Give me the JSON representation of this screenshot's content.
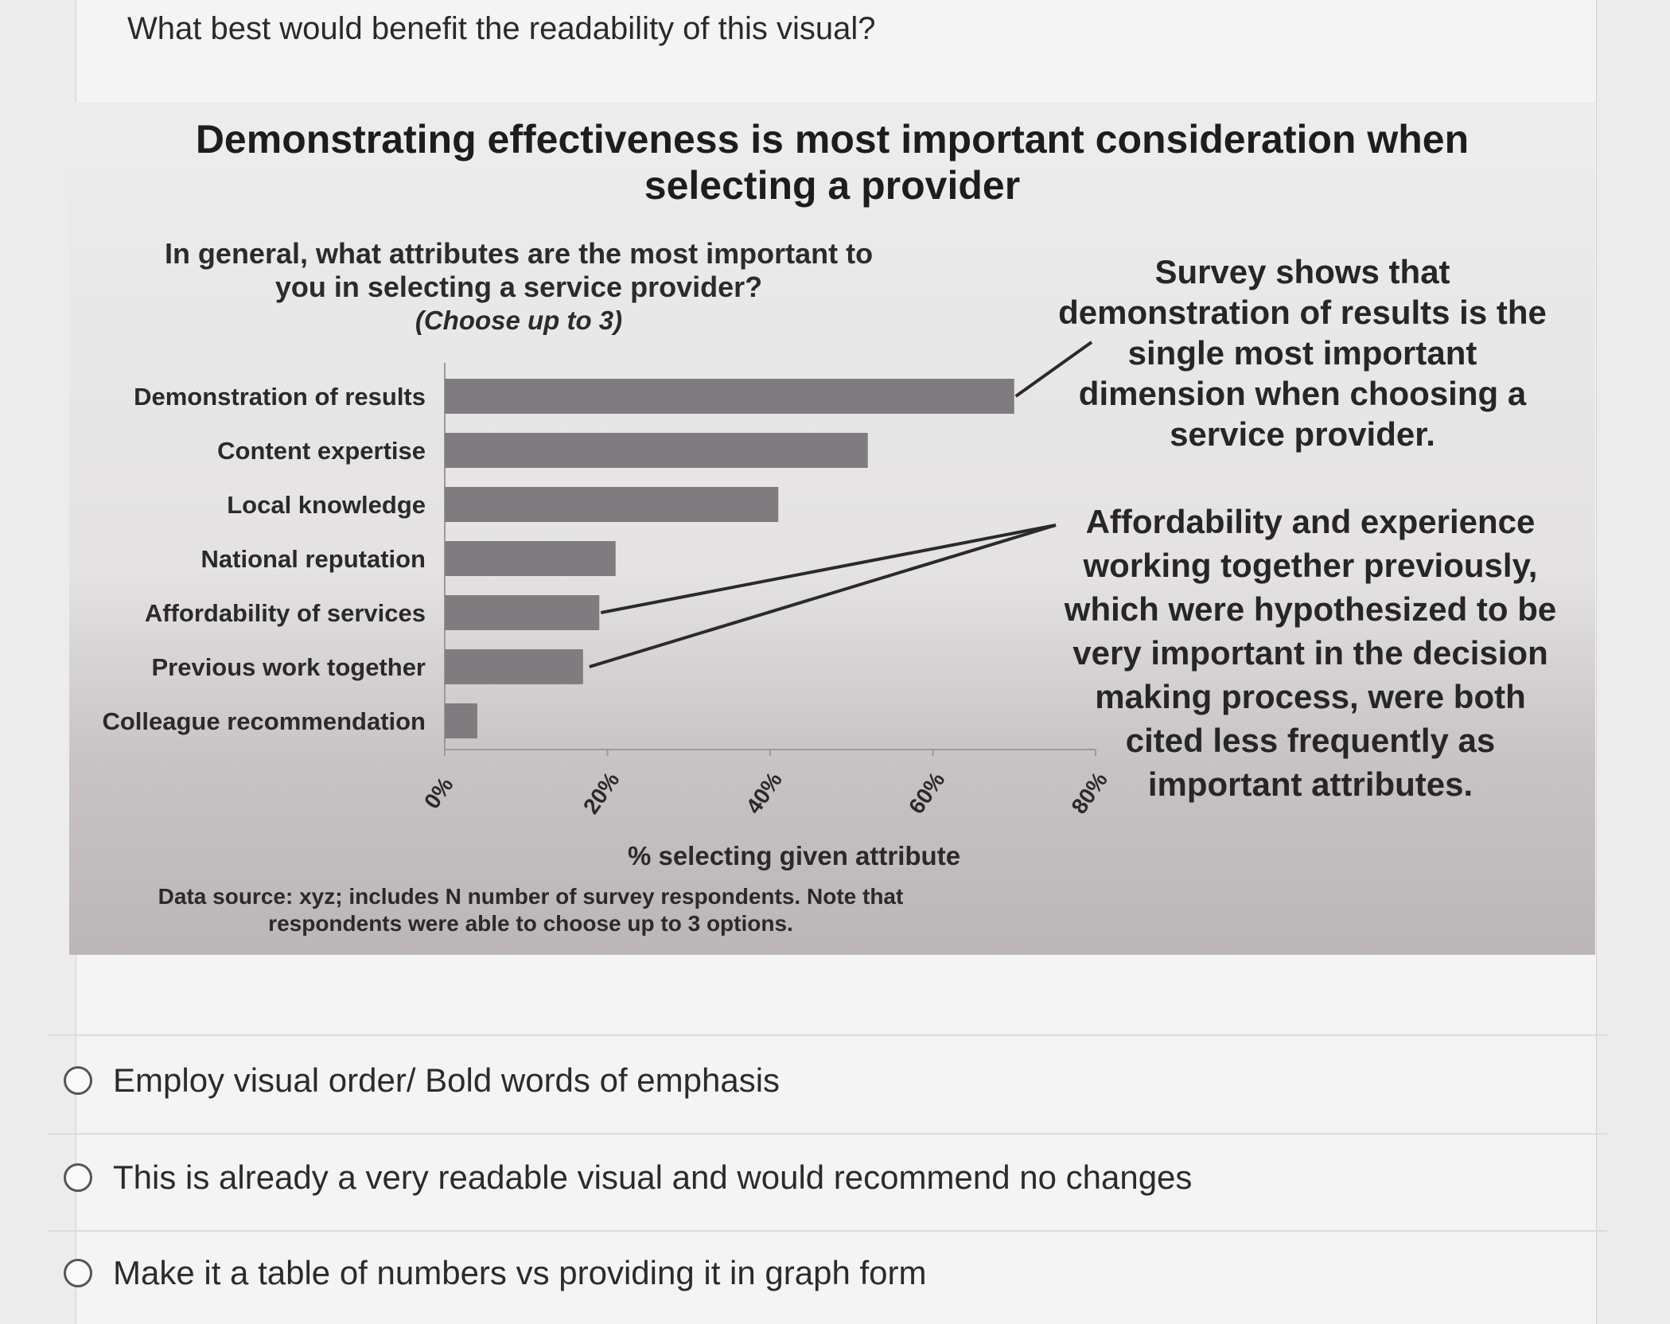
{
  "question": "What best would benefit the readability of this visual?",
  "figure": {
    "title_line1": "Demonstrating effectiveness is most important consideration when",
    "title_line2": "selecting a provider",
    "subtitle_line1": "In general, what attributes are the most important to",
    "subtitle_line2": "you in selecting a service provider?",
    "subtitle_note": "(Choose up to 3)",
    "callout_1": "Survey shows that demonstration of results is the single most important dimension when choosing a service provider.",
    "callout_2": "Affordability and experience working together previously, which were hypothesized to be very important in the decision making process, were both cited less frequently as important attributes.",
    "source_line1": "Data source: xyz; includes N number of survey respondents. Note that",
    "source_line2": "respondents were able to choose up to 3 options."
  },
  "chart_data": {
    "type": "bar",
    "orientation": "horizontal",
    "categories": [
      "Demonstration of results",
      "Content expertise",
      "Local knowledge",
      "National reputation",
      "Affordability of services",
      "Previous work together",
      "Colleague recommendation"
    ],
    "values": [
      70,
      52,
      41,
      21,
      19,
      17,
      4
    ],
    "xlabel": "% selecting given attribute",
    "xlim": [
      0,
      80
    ],
    "xticks": [
      0,
      20,
      40,
      60,
      80
    ],
    "xtick_labels": [
      "0%",
      "20%",
      "40%",
      "60%",
      "80%"
    ],
    "bar_color": "#807b7e",
    "callout_line_color": "#2a2a2a"
  },
  "options": [
    "Employ visual order/ Bold words of emphasis",
    "This is already a very readable visual and would recommend no changes",
    "Make it a table of numbers vs providing it in graph form"
  ]
}
